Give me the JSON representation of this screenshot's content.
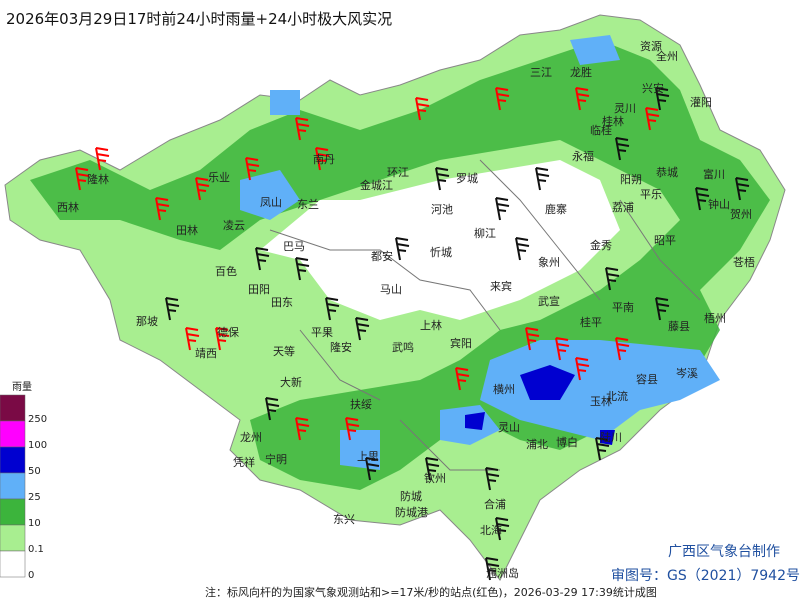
{
  "title": "2026年03月29日17时前24小时雨量+24小时极大风实况",
  "legend": {
    "title": "雨量",
    "levels": [
      250,
      100,
      50,
      25,
      10,
      0.1,
      0
    ],
    "colors": [
      "#7a0a45",
      "#ff00ff",
      "#0000d0",
      "#60b0f8",
      "#3cb43c",
      "#a8ee90",
      "#ffffff"
    ]
  },
  "places": [
    "资源",
    "全州",
    "龙胜",
    "三江",
    "兴安",
    "灌阳",
    "灵川",
    "桂林",
    "临桂",
    "永福",
    "恭城",
    "阳朔",
    "平乐",
    "富川",
    "钟山",
    "贺州",
    "荔浦",
    "昭平",
    "金秀",
    "苍梧",
    "藤县",
    "梧州",
    "岑溪",
    "容县",
    "北流",
    "陆川",
    "博白",
    "玉林",
    "平南",
    "桂平",
    "武宣",
    "象州",
    "来宾",
    "鹿寨",
    "柳江",
    "罗城",
    "环江",
    "金城江",
    "河池",
    "忻城",
    "都安",
    "马山",
    "上林",
    "宾阳",
    "武鸣",
    "隆安",
    "平果",
    "天等",
    "大新",
    "田东",
    "田阳",
    "巴马",
    "百色",
    "凌云",
    "乐业",
    "田林",
    "西林",
    "隆林",
    "那坡",
    "靖西",
    "德保",
    "南丹",
    "凤山",
    "东兰",
    "扶绥",
    "龙州",
    "凭祥",
    "宁明",
    "上思",
    "钦州",
    "防城",
    "防城港",
    "东兴",
    "北海",
    "合浦",
    "涠洲岛",
    "灵山",
    "浦北",
    "横州"
  ],
  "credit": "广西区气象台制作",
  "approval": "审图号：GS（2021）7942号",
  "note": "注：标风向杆的为国家气象观测站和>=17米/秒的站点(红色)，2026-03-29 17:39统计成图"
}
